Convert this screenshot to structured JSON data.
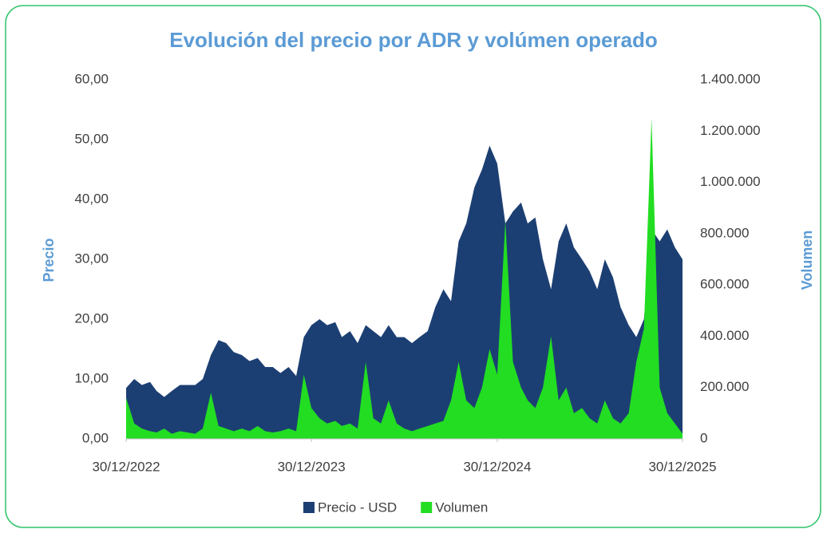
{
  "chart_data": {
    "type": "area",
    "title": "Evolución del precio por ADR y volúmen operado",
    "ylabel": "Precio",
    "y2label": "Volumen",
    "x": [
      "2022-12-30",
      "2023-01-15",
      "2023-01-30",
      "2023-02-15",
      "2023-02-28",
      "2023-03-15",
      "2023-03-30",
      "2023-04-15",
      "2023-04-30",
      "2023-05-15",
      "2023-05-30",
      "2023-06-15",
      "2023-06-30",
      "2023-07-15",
      "2023-07-30",
      "2023-08-15",
      "2023-08-30",
      "2023-09-15",
      "2023-09-30",
      "2023-10-15",
      "2023-10-30",
      "2023-11-15",
      "2023-11-30",
      "2023-12-15",
      "2023-12-30",
      "2024-01-15",
      "2024-01-30",
      "2024-02-15",
      "2024-02-28",
      "2024-03-15",
      "2024-03-30",
      "2024-04-15",
      "2024-04-30",
      "2024-05-15",
      "2024-05-30",
      "2024-06-15",
      "2024-06-30",
      "2024-07-15",
      "2024-07-30",
      "2024-08-15",
      "2024-08-30",
      "2024-09-15",
      "2024-09-30",
      "2024-10-15",
      "2024-10-30",
      "2024-11-15",
      "2024-11-30",
      "2024-12-15",
      "2024-12-30",
      "2025-01-15",
      "2025-01-30",
      "2025-02-15",
      "2025-02-28",
      "2025-03-15",
      "2025-03-30",
      "2025-04-15",
      "2025-04-30",
      "2025-05-15",
      "2025-05-30",
      "2025-06-15",
      "2025-06-30",
      "2025-07-15",
      "2025-07-30",
      "2025-08-15",
      "2025-08-30",
      "2025-09-15",
      "2025-09-30",
      "2025-10-15",
      "2025-10-30",
      "2025-11-15",
      "2025-11-30",
      "2025-12-15",
      "2025-12-30"
    ],
    "series": [
      {
        "name": "Precio - USD",
        "color": "#1c3f73",
        "values": [
          8.5,
          10,
          9,
          9.5,
          8,
          7,
          8,
          9,
          9,
          9,
          10,
          14,
          16.5,
          16,
          14.5,
          14,
          13,
          13.5,
          12,
          12,
          11,
          12,
          10.5,
          17,
          19,
          20,
          19,
          19.5,
          17,
          18,
          16,
          19,
          18,
          17,
          19,
          17,
          17,
          16,
          17,
          18,
          22,
          25,
          23,
          33,
          36,
          42,
          45,
          49,
          46,
          36,
          38,
          39.5,
          36,
          37,
          30,
          25,
          33,
          36,
          32,
          30,
          28,
          25,
          30,
          27,
          22,
          19,
          17,
          20,
          35,
          33,
          35,
          32,
          30
        ]
      },
      {
        "name": "Volumen",
        "color": "#22dd22",
        "axis": "y2",
        "values": [
          160000,
          60000,
          40000,
          30000,
          25000,
          40000,
          20000,
          30000,
          25000,
          20000,
          40000,
          180000,
          50000,
          40000,
          30000,
          40000,
          30000,
          50000,
          30000,
          25000,
          30000,
          40000,
          30000,
          250000,
          120000,
          80000,
          60000,
          70000,
          50000,
          60000,
          40000,
          300000,
          80000,
          60000,
          150000,
          60000,
          40000,
          30000,
          40000,
          50000,
          60000,
          70000,
          150000,
          300000,
          150000,
          120000,
          200000,
          350000,
          250000,
          850000,
          300000,
          200000,
          150000,
          120000,
          200000,
          400000,
          150000,
          200000,
          100000,
          120000,
          80000,
          60000,
          150000,
          80000,
          60000,
          100000,
          300000,
          430000,
          1250000,
          200000,
          100000,
          60000,
          20000
        ]
      }
    ],
    "xlim": [
      "2022-12-30",
      "2025-12-30"
    ],
    "xticks": [
      {
        "value": "2022-12-30",
        "label": "30/12/2022"
      },
      {
        "value": "2023-12-30",
        "label": "30/12/2023"
      },
      {
        "value": "2024-12-30",
        "label": "30/12/2024"
      },
      {
        "value": "2025-12-30",
        "label": "30/12/2025"
      }
    ],
    "ylim": [
      0,
      60
    ],
    "yticks": [
      {
        "value": 0,
        "label": "0,00"
      },
      {
        "value": 10,
        "label": "10,00"
      },
      {
        "value": 20,
        "label": "20,00"
      },
      {
        "value": 30,
        "label": "30,00"
      },
      {
        "value": 40,
        "label": "40,00"
      },
      {
        "value": 50,
        "label": "50,00"
      },
      {
        "value": 60,
        "label": "60,00"
      }
    ],
    "y2lim": [
      0,
      1400000
    ],
    "y2ticks": [
      0,
      {
        "value": 200000,
        "label": "200.000"
      },
      {
        "value": 400000,
        "label": "400.000"
      },
      {
        "value": 600000,
        "label": "600.000"
      },
      {
        "value": 800000,
        "label": "800.000"
      },
      {
        "value": 1000000,
        "label": "1.000.000"
      },
      {
        "value": 1200000,
        "label": "1.200.000"
      },
      {
        "value": 1400000,
        "label": "1.400.000"
      }
    ],
    "legend": "bottom"
  }
}
